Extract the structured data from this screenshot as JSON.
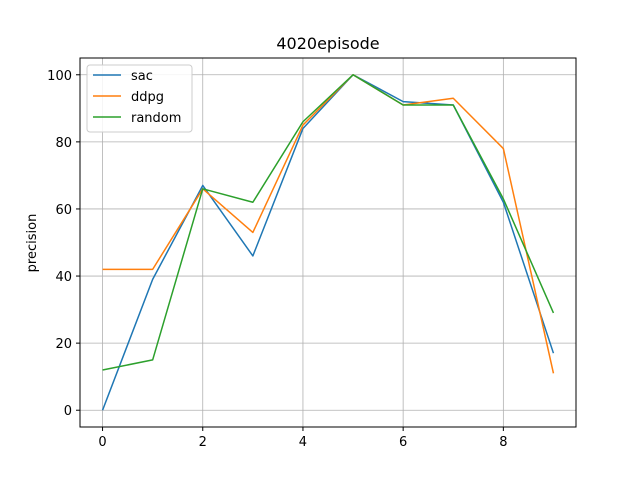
{
  "chart_data": {
    "type": "line",
    "title": "4020episode",
    "xlabel": "",
    "ylabel": "precision",
    "x": [
      0,
      1,
      2,
      3,
      4,
      5,
      6,
      7,
      8,
      9
    ],
    "xlim": [
      -0.45,
      9.45
    ],
    "ylim": [
      -5,
      105
    ],
    "xticks": [
      0,
      2,
      4,
      6,
      8
    ],
    "yticks": [
      0,
      20,
      40,
      60,
      80,
      100
    ],
    "grid": true,
    "legend_position": "top-left",
    "series": [
      {
        "name": "sac",
        "color": "#1f77b4",
        "values": [
          0,
          39,
          67,
          46,
          84,
          100,
          92,
          91,
          62,
          17
        ]
      },
      {
        "name": "ddpg",
        "color": "#ff7f0e",
        "values": [
          42,
          42,
          66,
          53,
          85,
          100,
          91,
          93,
          78,
          11
        ]
      },
      {
        "name": "random",
        "color": "#2ca02c",
        "values": [
          12,
          15,
          66,
          62,
          86,
          100,
          91,
          91,
          63,
          29
        ]
      }
    ]
  }
}
